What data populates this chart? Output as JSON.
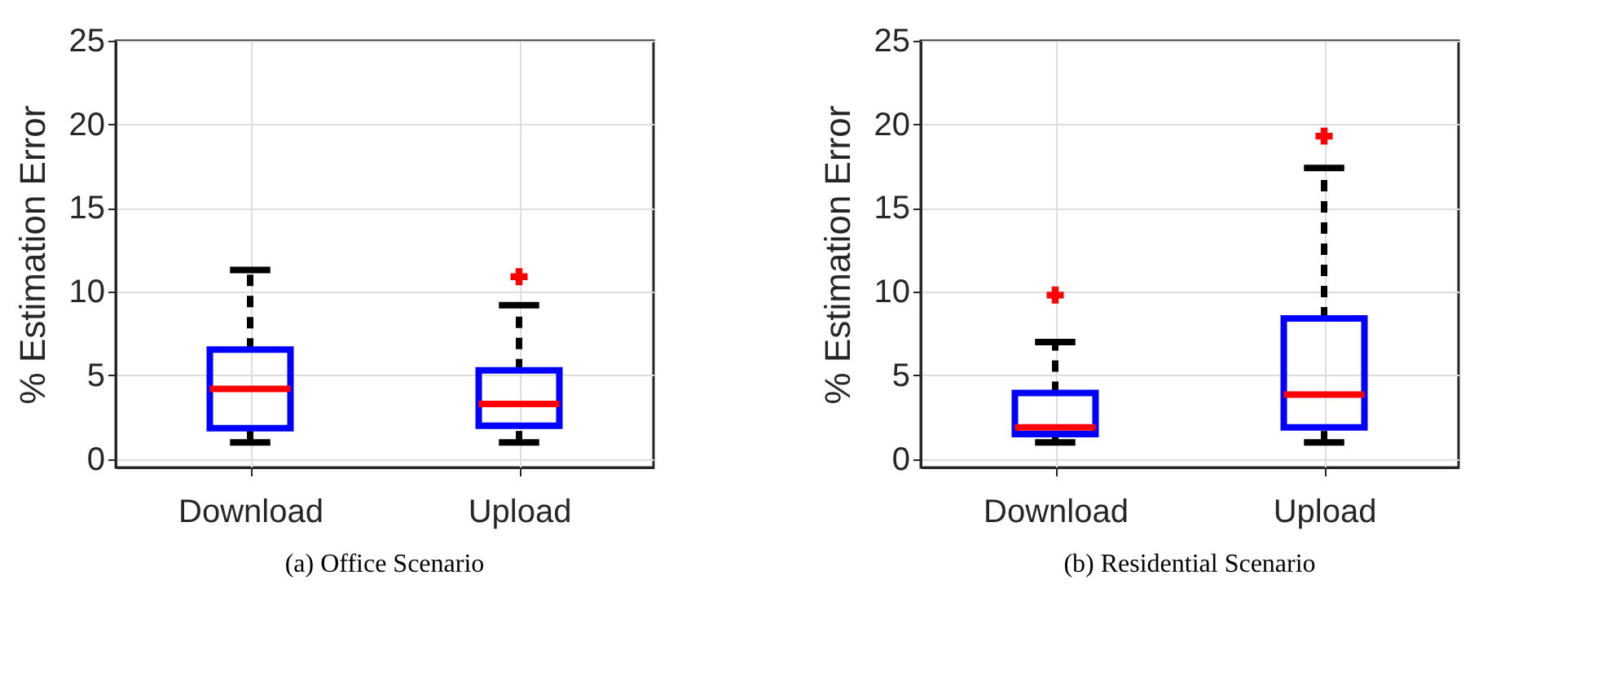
{
  "chart_data": [
    {
      "type": "box",
      "title": "(a) Office Scenario",
      "ylabel": "% Estimation Error",
      "categories": [
        "Download",
        "Upload"
      ],
      "ylim": [
        -0.5,
        25
      ],
      "yticks": [
        0,
        5,
        10,
        15,
        20,
        25
      ],
      "grid": true,
      "line_style": "dashed",
      "series": [
        {
          "color": "#0000ff",
          "boxes": [
            {
              "low": 1.0,
              "q1": 1.85,
              "median": 4.2,
              "q3": 6.55,
              "high": 11.3
            },
            {
              "low": 1.0,
              "q1": 2.0,
              "median": 3.3,
              "q3": 5.3,
              "high": 9.2,
              "outliers": [
                10.9
              ]
            }
          ]
        }
      ]
    },
    {
      "type": "box",
      "title": "(b) Residential Scenario",
      "ylabel": "% Estimation Error",
      "categories": [
        "Download",
        "Upload"
      ],
      "ylim": [
        -0.5,
        25
      ],
      "yticks": [
        0,
        5,
        10,
        15,
        20,
        25
      ],
      "grid": true,
      "line_style": "dashed",
      "series": [
        {
          "color": "#0000ff",
          "boxes": [
            {
              "low": 1.0,
              "q1": 1.5,
              "median": 1.9,
              "q3": 3.95,
              "high": 7.0,
              "outliers": [
                9.8
              ]
            },
            {
              "low": 1.0,
              "q1": 1.9,
              "median": 3.85,
              "q3": 8.4,
              "high": 17.4,
              "outliers": [
                19.3
              ]
            }
          ]
        }
      ]
    }
  ]
}
